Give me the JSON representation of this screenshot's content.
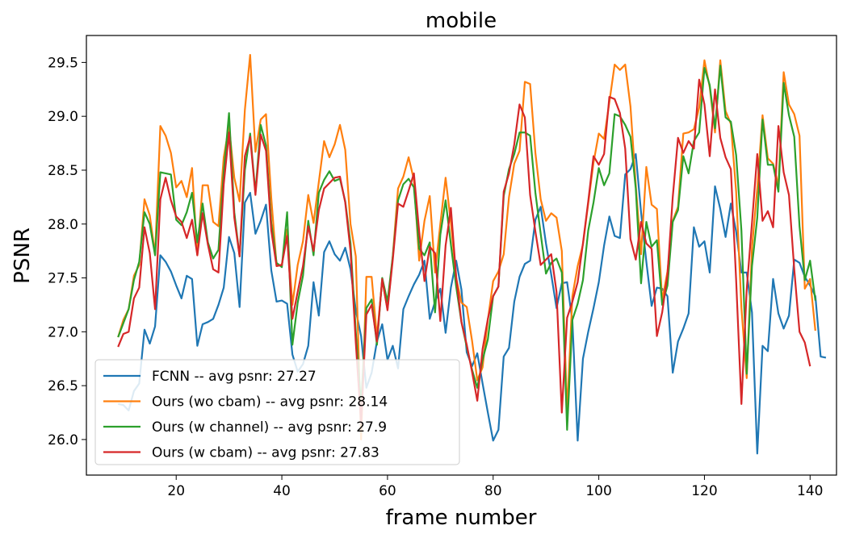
{
  "chart_data": {
    "type": "line",
    "title": "mobile",
    "xlabel": "frame number",
    "ylabel": "PSNR",
    "xlim": [
      3,
      145
    ],
    "ylim": [
      25.67,
      29.75
    ],
    "xticks": [
      20,
      40,
      60,
      80,
      100,
      120,
      140
    ],
    "yticks": [
      26.0,
      26.5,
      27.0,
      27.5,
      28.0,
      28.5,
      29.0,
      29.5
    ],
    "x_start": 9,
    "x_end": 140,
    "grid": false,
    "legend_position": "lower-left",
    "series": [
      {
        "name": "FCNN -- avg psnr: 27.27",
        "color": "#1f77b4",
        "values": [
          26.33,
          26.32,
          26.27,
          26.45,
          26.52,
          27.02,
          26.89,
          27.05,
          27.71,
          27.65,
          27.56,
          27.43,
          27.31,
          27.52,
          27.49,
          26.87,
          27.07,
          27.09,
          27.12,
          27.25,
          27.41,
          27.88,
          27.73,
          27.23,
          28.2,
          28.29,
          27.91,
          28.03,
          28.18,
          27.57,
          27.28,
          27.29,
          27.26,
          26.79,
          26.63,
          26.7,
          26.87,
          27.46,
          27.15,
          27.74,
          27.84,
          27.72,
          27.66,
          27.78,
          27.58,
          27.2,
          26.96,
          26.48,
          26.62,
          26.91,
          27.07,
          26.74,
          26.87,
          26.66,
          27.21,
          27.33,
          27.44,
          27.53,
          27.66,
          27.12,
          27.28,
          27.4,
          26.99,
          27.41,
          27.66,
          27.39,
          26.81,
          26.68,
          26.8,
          26.52,
          26.25,
          25.99,
          26.09,
          26.77,
          26.85,
          27.28,
          27.51,
          27.63,
          27.66,
          28.04,
          28.16,
          27.82,
          27.53,
          27.22,
          27.45,
          27.46,
          27.1,
          25.99,
          26.75,
          27.0,
          27.22,
          27.46,
          27.8,
          28.07,
          27.89,
          27.87,
          28.46,
          28.51,
          28.65,
          28.11,
          27.65,
          27.24,
          27.41,
          27.4,
          27.33,
          26.62,
          26.91,
          27.03,
          27.17,
          27.97,
          27.79,
          27.84,
          27.55,
          28.35,
          28.14,
          27.88,
          28.19,
          27.93,
          27.55,
          27.55,
          27.18,
          25.87,
          26.87,
          26.82,
          27.49,
          27.17,
          27.03,
          27.15,
          27.67,
          27.64,
          27.51,
          27.43,
          27.33,
          26.77,
          26.76
        ]
      },
      {
        "name": "Ours (wo cbam) -- avg psnr: 28.14",
        "color": "#ff7f0e",
        "values": [
          26.95,
          27.11,
          27.21,
          27.52,
          27.62,
          28.23,
          28.08,
          27.72,
          28.91,
          28.82,
          28.66,
          28.34,
          28.4,
          28.25,
          28.52,
          27.71,
          28.36,
          28.36,
          28.02,
          27.98,
          28.62,
          28.91,
          28.43,
          28.21,
          29.06,
          29.57,
          28.67,
          28.97,
          29.02,
          28.24,
          27.62,
          27.62,
          27.95,
          27.25,
          27.62,
          27.84,
          28.27,
          28.01,
          28.39,
          28.77,
          28.62,
          28.74,
          28.92,
          28.69,
          28.0,
          27.7,
          26.0,
          27.51,
          27.51,
          26.95,
          27.48,
          27.21,
          27.7,
          28.33,
          28.44,
          28.62,
          28.41,
          27.66,
          28.03,
          28.26,
          27.55,
          28.0,
          28.43,
          28.01,
          27.5,
          27.27,
          27.23,
          26.92,
          26.55,
          26.67,
          27.11,
          27.47,
          27.56,
          27.72,
          28.25,
          28.56,
          28.68,
          29.32,
          29.3,
          28.66,
          28.23,
          28.03,
          28.1,
          28.06,
          27.75,
          26.25,
          27.33,
          27.61,
          27.81,
          28.19,
          28.57,
          28.84,
          28.79,
          29.13,
          29.48,
          29.43,
          29.48,
          29.09,
          28.36,
          27.72,
          28.53,
          28.18,
          28.14,
          27.29,
          27.56,
          28.03,
          28.16,
          28.84,
          28.85,
          28.88,
          29.08,
          29.52,
          29.27,
          28.85,
          29.52,
          29.05,
          28.93,
          28.3,
          27.22,
          26.57,
          27.78,
          28.33,
          29.01,
          28.61,
          28.56,
          28.36,
          29.41,
          29.11,
          29.02,
          28.82,
          27.4,
          27.49,
          27.01
        ]
      },
      {
        "name": "Ours (w channel) -- avg psnr: 27.9",
        "color": "#2ca02c",
        "values": [
          26.95,
          27.08,
          27.21,
          27.48,
          27.65,
          28.11,
          28.0,
          27.71,
          28.48,
          28.47,
          28.46,
          28.04,
          27.99,
          28.11,
          28.29,
          27.83,
          28.19,
          27.83,
          27.68,
          27.76,
          28.48,
          29.03,
          28.11,
          27.7,
          28.5,
          28.84,
          28.29,
          28.92,
          28.73,
          28.01,
          27.64,
          27.6,
          28.11,
          26.88,
          27.27,
          27.52,
          28.03,
          27.71,
          28.29,
          28.41,
          28.49,
          28.4,
          28.42,
          28.21,
          27.82,
          27.0,
          26.32,
          27.22,
          27.3,
          26.88,
          27.5,
          27.28,
          27.7,
          28.22,
          28.37,
          28.42,
          28.34,
          27.77,
          27.71,
          27.83,
          27.18,
          27.9,
          28.22,
          27.81,
          27.42,
          27.09,
          26.86,
          26.65,
          26.48,
          26.74,
          26.93,
          27.33,
          27.42,
          28.26,
          28.51,
          28.65,
          28.85,
          28.85,
          28.82,
          28.29,
          27.91,
          27.54,
          27.64,
          27.68,
          27.55,
          26.09,
          27.11,
          27.26,
          27.48,
          27.94,
          28.2,
          28.52,
          28.36,
          28.47,
          29.02,
          29.0,
          28.92,
          28.81,
          28.33,
          27.45,
          28.02,
          27.79,
          27.85,
          27.25,
          27.43,
          28.02,
          28.13,
          28.63,
          28.47,
          28.77,
          28.85,
          29.45,
          29.29,
          28.89,
          29.47,
          28.99,
          28.95,
          28.64,
          27.94,
          26.61,
          27.61,
          28.06,
          28.97,
          28.55,
          28.55,
          28.3,
          29.31,
          29.01,
          28.81,
          27.98,
          27.48,
          27.66,
          27.29
        ]
      },
      {
        "name": "Ours (w cbam) -- avg psnr: 27.83",
        "color": "#d62728",
        "values": [
          26.86,
          26.98,
          27.0,
          27.31,
          27.41,
          27.97,
          27.73,
          27.21,
          28.23,
          28.43,
          28.22,
          28.07,
          28.02,
          27.87,
          28.04,
          27.71,
          28.1,
          27.81,
          27.58,
          27.55,
          28.37,
          28.85,
          28.06,
          27.7,
          28.63,
          28.81,
          28.27,
          28.83,
          28.68,
          27.94,
          27.61,
          27.62,
          27.89,
          27.12,
          27.37,
          27.61,
          27.98,
          27.75,
          28.13,
          28.33,
          28.38,
          28.43,
          28.44,
          28.2,
          27.75,
          26.9,
          26.15,
          27.16,
          27.25,
          26.91,
          27.49,
          27.2,
          27.67,
          28.19,
          28.16,
          28.31,
          28.47,
          27.93,
          27.47,
          27.79,
          27.73,
          27.1,
          27.8,
          28.15,
          27.51,
          27.09,
          26.88,
          26.63,
          26.36,
          26.84,
          27.12,
          27.33,
          27.42,
          28.3,
          28.47,
          28.74,
          29.11,
          28.99,
          28.27,
          27.93,
          27.62,
          27.67,
          27.72,
          27.37,
          26.25,
          27.13,
          27.28,
          27.46,
          27.82,
          28.21,
          28.63,
          28.55,
          28.65,
          29.18,
          29.16,
          29.03,
          28.7,
          27.86,
          27.67,
          28.02,
          27.82,
          27.77,
          26.96,
          27.18,
          27.53,
          28.25,
          28.8,
          28.66,
          28.77,
          28.7,
          29.34,
          29.11,
          28.63,
          29.25,
          28.8,
          28.62,
          28.51,
          27.48,
          26.33,
          27.39,
          28.01,
          28.65,
          28.03,
          28.12,
          27.97,
          28.91,
          28.48,
          28.27,
          27.58,
          27.0,
          26.9,
          26.68
        ]
      }
    ]
  }
}
